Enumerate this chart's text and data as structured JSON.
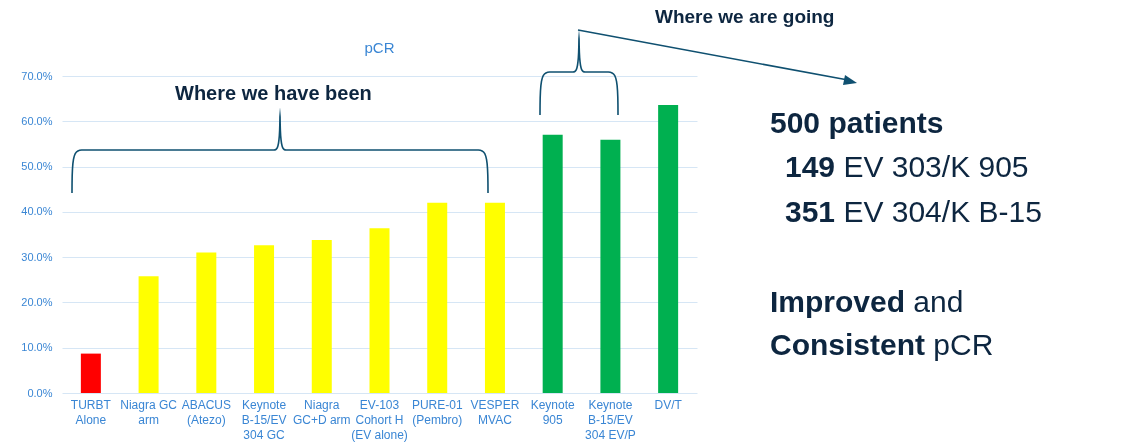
{
  "chart_data": {
    "type": "bar",
    "title": "pCR",
    "categories": [
      "TURBT\nAlone",
      "Niagra GC\narm",
      "ABACUS\n(Atezo)",
      "Keynote\nB-15/EV\n304 GC",
      "Niagra\nGC+D arm",
      "EV-103\nCohort H\n(EV alone)",
      "PURE-01\n(Pembro)",
      "VESPER\nMVAC",
      "Keynote\n905",
      "Keynote\nB-15/EV\n304 EV/P",
      "DV/T"
    ],
    "values": [
      8.7,
      25.8,
      31.0,
      32.6,
      33.8,
      36.4,
      42.0,
      42.0,
      57.0,
      55.9,
      63.6
    ],
    "colors": [
      "#ff0000",
      "#ffff00",
      "#ffff00",
      "#ffff00",
      "#ffff00",
      "#ffff00",
      "#ffff00",
      "#ffff00",
      "#00b050",
      "#00b050",
      "#00b050"
    ],
    "ylim": [
      0,
      70
    ],
    "yticks": [
      {
        "value": 0,
        "label": "0.0%"
      },
      {
        "value": 10,
        "label": "10.0%"
      },
      {
        "value": 20,
        "label": "20.0%"
      },
      {
        "value": 30,
        "label": "30.0%"
      },
      {
        "value": 40,
        "label": "40.0%"
      },
      {
        "value": 50,
        "label": "50.0%"
      },
      {
        "value": 60,
        "label": "60.0%"
      },
      {
        "value": 70,
        "label": "70.0%"
      }
    ],
    "grid": "y",
    "annotations": [
      "Where we have been",
      "Where we are going",
      "500 patients",
      "149 EV 303/K 905",
      "351 EV 304/K B-15",
      "Improved and",
      "Consistent pCR"
    ]
  }
}
